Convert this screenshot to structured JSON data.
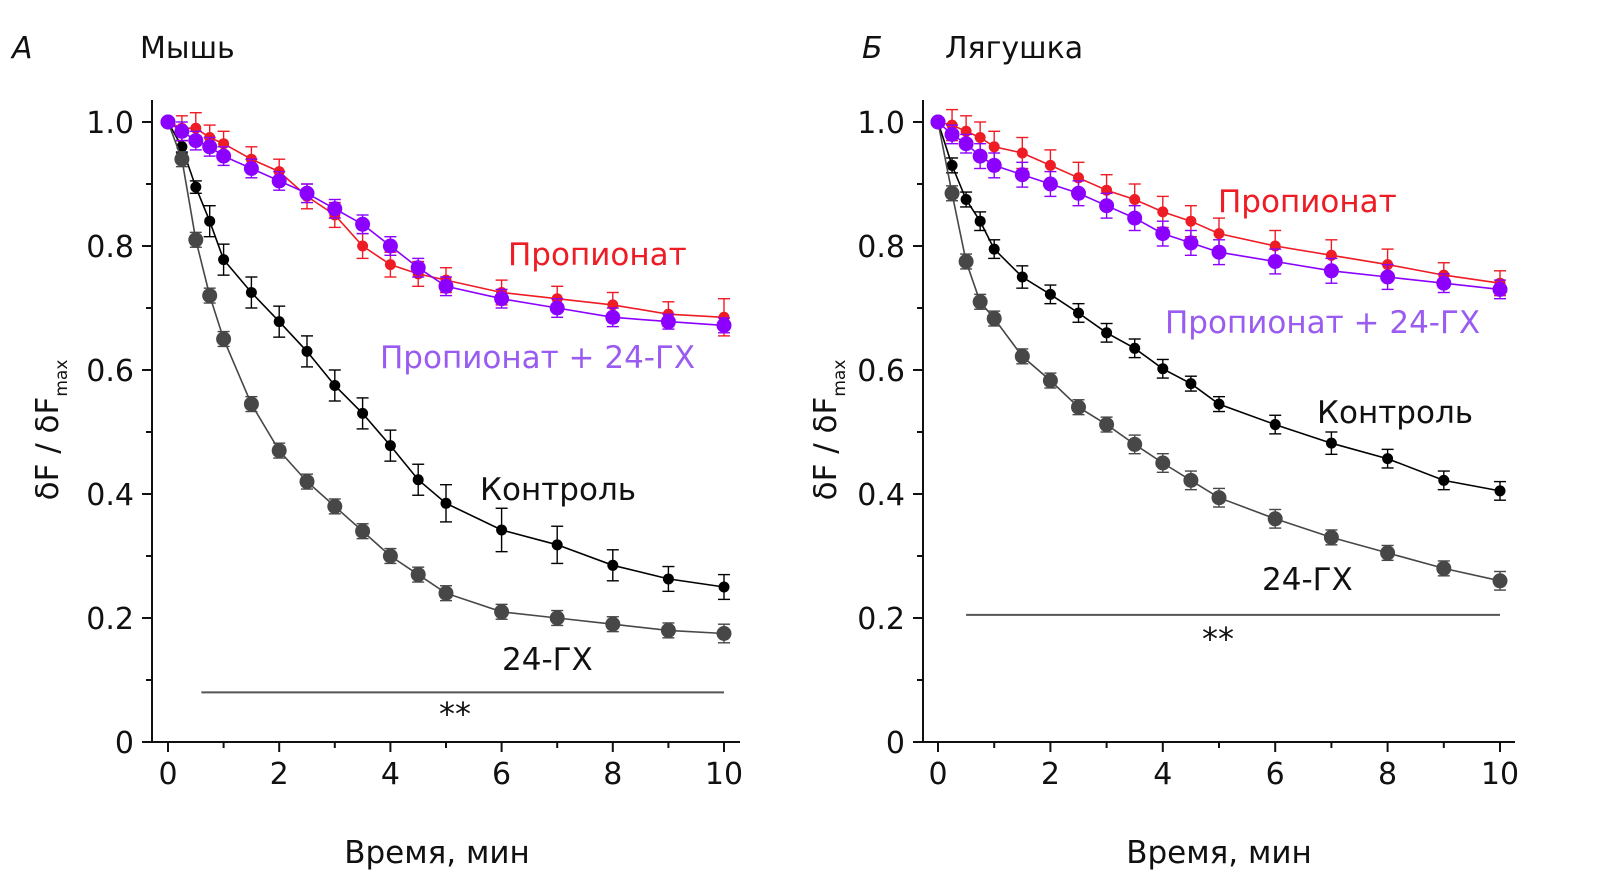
{
  "chart_data": [
    {
      "type": "line",
      "panel_letter": "А",
      "title": "Мышь",
      "xlabel": "Время, мин",
      "ylabel": "δF / δF",
      "ylabel_sub": "max",
      "xlim": [
        0,
        10
      ],
      "ylim": [
        0,
        1.0
      ],
      "xticks": [
        "0",
        "2",
        "4",
        "6",
        "8",
        "10"
      ],
      "yticks": [
        "0",
        "0.2",
        "0.4",
        "0.6",
        "0.8",
        "1.0"
      ],
      "grid": false,
      "significance": {
        "label": "**",
        "x_start": 0.6,
        "x_end": 10,
        "y": 0.08
      },
      "series": [
        {
          "name": "Пропионат",
          "color": "#ee1c24",
          "marker": "small",
          "x": [
            0,
            0.25,
            0.5,
            0.75,
            1,
            1.5,
            2,
            2.5,
            3,
            3.5,
            4,
            4.5,
            5,
            6,
            7,
            8,
            9,
            10
          ],
          "y": [
            1.0,
            0.99,
            0.99,
            0.975,
            0.965,
            0.94,
            0.92,
            0.88,
            0.85,
            0.8,
            0.77,
            0.755,
            0.745,
            0.725,
            0.715,
            0.705,
            0.69,
            0.685
          ],
          "err": [
            0,
            0.02,
            0.025,
            0.02,
            0.02,
            0.02,
            0.02,
            0.02,
            0.02,
            0.02,
            0.02,
            0.02,
            0.02,
            0.02,
            0.02,
            0.02,
            0.02,
            0.03
          ]
        },
        {
          "name": "Пропионат + 24-ГХ",
          "color": "#8b00ff",
          "label_color": "#9a5cf0",
          "marker": "large",
          "x": [
            0,
            0.25,
            0.5,
            0.75,
            1,
            1.5,
            2,
            2.5,
            3,
            3.5,
            4,
            4.5,
            5,
            6,
            7,
            8,
            9,
            10
          ],
          "y": [
            1.0,
            0.985,
            0.97,
            0.96,
            0.945,
            0.925,
            0.905,
            0.885,
            0.86,
            0.835,
            0.8,
            0.765,
            0.735,
            0.715,
            0.7,
            0.685,
            0.678,
            0.672
          ],
          "err": [
            0,
            0.015,
            0.015,
            0.015,
            0.015,
            0.015,
            0.015,
            0.015,
            0.015,
            0.015,
            0.015,
            0.015,
            0.015,
            0.015,
            0.015,
            0.015,
            0.012,
            0.012
          ]
        },
        {
          "name": "Контроль",
          "color": "#000000",
          "marker": "small",
          "x": [
            0,
            0.25,
            0.5,
            0.75,
            1,
            1.5,
            2,
            2.5,
            3,
            3.5,
            4,
            4.5,
            5,
            6,
            7,
            8,
            9,
            10
          ],
          "y": [
            1.0,
            0.96,
            0.895,
            0.84,
            0.778,
            0.725,
            0.678,
            0.63,
            0.575,
            0.53,
            0.478,
            0.423,
            0.385,
            0.342,
            0.318,
            0.285,
            0.263,
            0.25
          ],
          "err": [
            0,
            0.01,
            0.01,
            0.025,
            0.025,
            0.025,
            0.025,
            0.025,
            0.025,
            0.025,
            0.025,
            0.025,
            0.03,
            0.035,
            0.03,
            0.025,
            0.02,
            0.02
          ]
        },
        {
          "name": "24-ГХ",
          "color": "#474747",
          "marker": "large",
          "x": [
            0,
            0.25,
            0.5,
            0.75,
            1,
            1.5,
            2,
            2.5,
            3,
            3.5,
            4,
            4.5,
            5,
            6,
            7,
            8,
            9,
            10
          ],
          "y": [
            1.0,
            0.94,
            0.81,
            0.72,
            0.65,
            0.545,
            0.47,
            0.42,
            0.38,
            0.34,
            0.3,
            0.27,
            0.24,
            0.21,
            0.2,
            0.19,
            0.18,
            0.175
          ],
          "err": [
            0,
            0.012,
            0.012,
            0.012,
            0.012,
            0.012,
            0.012,
            0.012,
            0.012,
            0.012,
            0.012,
            0.012,
            0.012,
            0.012,
            0.012,
            0.012,
            0.012,
            0.015
          ]
        }
      ]
    },
    {
      "type": "line",
      "panel_letter": "Б",
      "title": "Лягушка",
      "xlabel": "Время, мин",
      "ylabel": "δF / δF",
      "ylabel_sub": "max",
      "xlim": [
        0,
        10
      ],
      "ylim": [
        0,
        1.0
      ],
      "xticks": [
        "0",
        "2",
        "4",
        "6",
        "8",
        "10"
      ],
      "yticks": [
        "0",
        "0.2",
        "0.4",
        "0.6",
        "0.8",
        "1.0"
      ],
      "grid": false,
      "significance": {
        "label": "**",
        "x_start": 0.5,
        "x_end": 10,
        "y": 0.205
      },
      "series": [
        {
          "name": "Пропионат",
          "color": "#ee1c24",
          "marker": "small",
          "x": [
            0,
            0.25,
            0.5,
            0.75,
            1,
            1.5,
            2,
            2.5,
            3,
            3.5,
            4,
            4.5,
            5,
            6,
            7,
            8,
            9,
            10
          ],
          "y": [
            1.0,
            0.995,
            0.985,
            0.975,
            0.96,
            0.95,
            0.93,
            0.91,
            0.89,
            0.875,
            0.855,
            0.84,
            0.82,
            0.8,
            0.785,
            0.77,
            0.753,
            0.74
          ],
          "err": [
            0,
            0.025,
            0.025,
            0.025,
            0.025,
            0.025,
            0.025,
            0.025,
            0.025,
            0.025,
            0.025,
            0.025,
            0.025,
            0.025,
            0.025,
            0.025,
            0.02,
            0.02
          ]
        },
        {
          "name": "Пропионат + 24-ГХ",
          "color": "#8b00ff",
          "label_color": "#9a5cf0",
          "marker": "large",
          "x": [
            0,
            0.25,
            0.5,
            0.75,
            1,
            1.5,
            2,
            2.5,
            3,
            3.5,
            4,
            4.5,
            5,
            6,
            7,
            8,
            9,
            10
          ],
          "y": [
            1.0,
            0.98,
            0.965,
            0.945,
            0.93,
            0.915,
            0.9,
            0.885,
            0.865,
            0.845,
            0.82,
            0.805,
            0.79,
            0.775,
            0.76,
            0.75,
            0.74,
            0.73
          ],
          "err": [
            0,
            0.015,
            0.015,
            0.02,
            0.02,
            0.02,
            0.02,
            0.02,
            0.02,
            0.02,
            0.02,
            0.02,
            0.02,
            0.02,
            0.02,
            0.02,
            0.015,
            0.015
          ]
        },
        {
          "name": "Контроль",
          "color": "#000000",
          "marker": "small",
          "x": [
            0,
            0.25,
            0.5,
            0.75,
            1,
            1.5,
            2,
            2.5,
            3,
            3.5,
            4,
            4.5,
            5,
            6,
            7,
            8,
            9,
            10
          ],
          "y": [
            1.0,
            0.93,
            0.875,
            0.84,
            0.795,
            0.75,
            0.722,
            0.692,
            0.66,
            0.635,
            0.602,
            0.578,
            0.545,
            0.512,
            0.482,
            0.457,
            0.422,
            0.405
          ],
          "err": [
            0,
            0.012,
            0.012,
            0.015,
            0.015,
            0.018,
            0.015,
            0.015,
            0.015,
            0.015,
            0.015,
            0.012,
            0.012,
            0.015,
            0.018,
            0.015,
            0.015,
            0.015
          ]
        },
        {
          "name": "24-ГХ",
          "color": "#474747",
          "marker": "large",
          "x": [
            0,
            0.25,
            0.5,
            0.75,
            1,
            1.5,
            2,
            2.5,
            3,
            3.5,
            4,
            4.5,
            5,
            6,
            7,
            8,
            9,
            10
          ],
          "y": [
            1.0,
            0.885,
            0.775,
            0.71,
            0.683,
            0.622,
            0.583,
            0.54,
            0.512,
            0.48,
            0.45,
            0.422,
            0.394,
            0.36,
            0.33,
            0.305,
            0.28,
            0.26
          ],
          "err": [
            0,
            0.012,
            0.012,
            0.012,
            0.012,
            0.012,
            0.012,
            0.012,
            0.012,
            0.015,
            0.015,
            0.015,
            0.015,
            0.015,
            0.012,
            0.012,
            0.012,
            0.015
          ]
        }
      ]
    }
  ]
}
